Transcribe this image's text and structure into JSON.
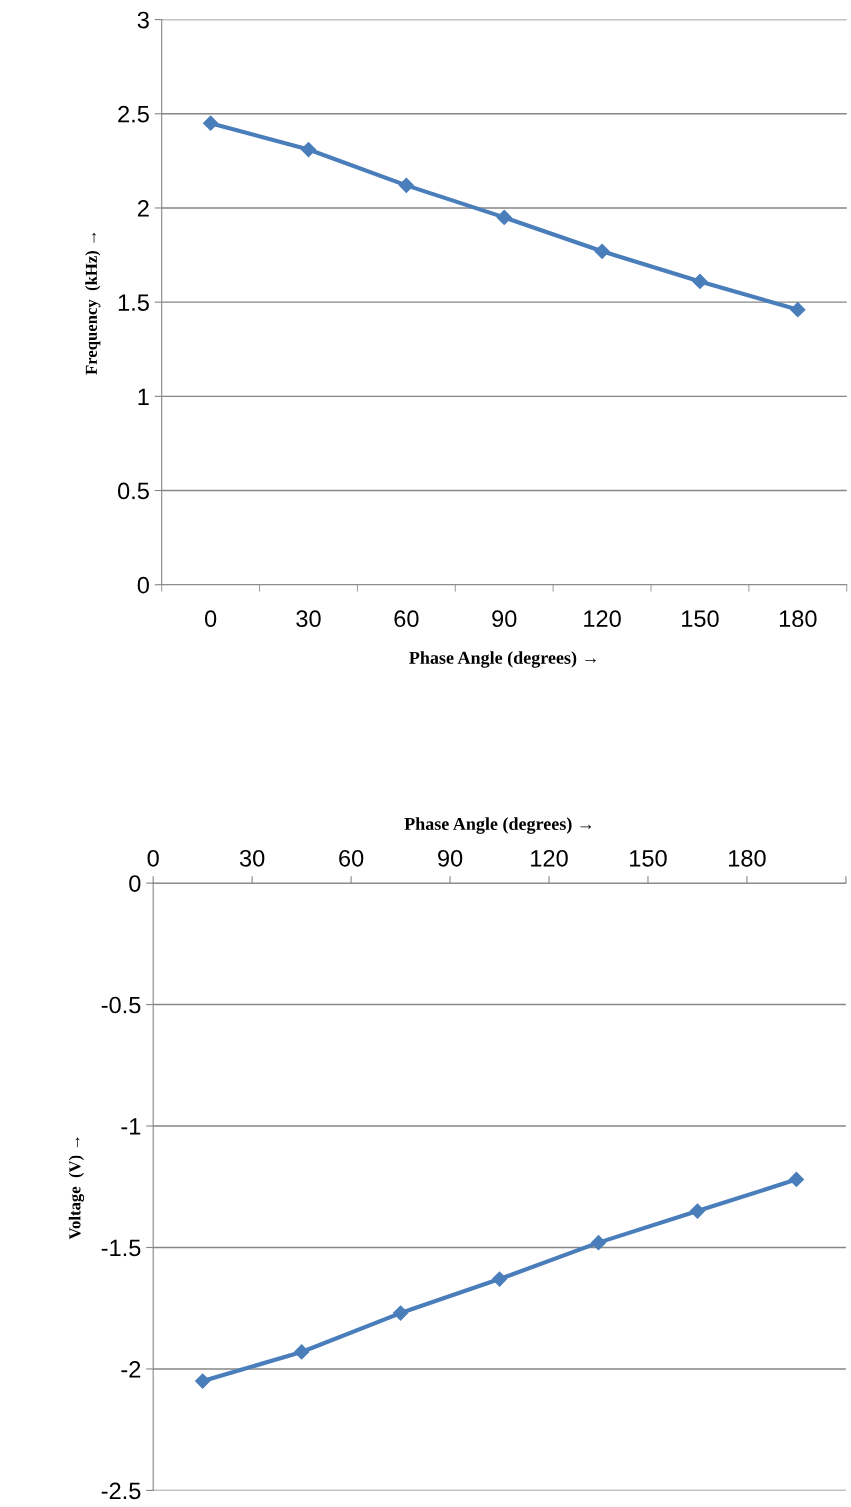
{
  "chart_data": [
    {
      "type": "line",
      "xlabel": "Phase Angle (degrees) →",
      "ylabel": "Frequency  (kHz) →",
      "categories": [
        "0",
        "30",
        "60",
        "90",
        "120",
        "150",
        "180"
      ],
      "series": [
        {
          "color": "#4a7ebb",
          "values": [
            2.45,
            2.31,
            2.12,
            1.95,
            1.77,
            1.61,
            1.46
          ]
        }
      ],
      "ylim": [
        0,
        3
      ],
      "yticks": [
        0,
        0.5,
        1,
        1.5,
        2,
        2.5,
        3
      ],
      "grid": "y",
      "marker": "diamond",
      "line_style": "solid"
    },
    {
      "type": "line",
      "xlabel": "Phase Angle (degrees) →",
      "ylabel": "Voltage  (V) →",
      "x": [
        15,
        45,
        75,
        105,
        135,
        165,
        195
      ],
      "xlim": [
        0,
        210
      ],
      "xticks": [
        0,
        30,
        60,
        90,
        120,
        150,
        180,
        {
          "value": 210,
          "label": null
        }
      ],
      "series": [
        {
          "color": "#4a7ebb",
          "values": [
            -2.05,
            -1.93,
            -1.77,
            -1.63,
            -1.48,
            -1.35,
            -1.22
          ]
        }
      ],
      "ylim": [
        -2.5,
        0
      ],
      "yticks": [
        -2.5,
        -2,
        -1.5,
        -1,
        -0.5,
        0
      ],
      "grid": "y",
      "marker": "diamond",
      "line_style": "solid"
    }
  ]
}
